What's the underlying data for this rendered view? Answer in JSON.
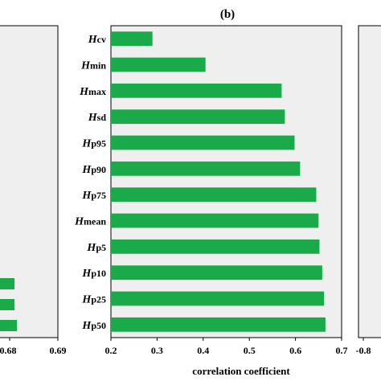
{
  "panels": {
    "left": {
      "tick_labels": [
        "0.68",
        "0.69"
      ]
    },
    "right": {
      "tick_labels": [
        "-0.8"
      ]
    }
  },
  "colors": {
    "bar": "#1aaa4a",
    "bar_stroke": "#0d7a30",
    "plot_bg": "#efefef",
    "axis": "#000000"
  },
  "chart_data": {
    "type": "bar",
    "orientation": "horizontal",
    "title": "(b)",
    "xlabel": "correlation coefficient",
    "ylabel": "",
    "xlim": [
      0.2,
      0.7
    ],
    "xticks": [
      "0.2",
      "0.3",
      "0.4",
      "0.5",
      "0.6",
      "0.7"
    ],
    "categories": [
      {
        "main": "H",
        "sub": "cv"
      },
      {
        "main": "H",
        "sub": "min"
      },
      {
        "main": "H",
        "sub": "max"
      },
      {
        "main": "H",
        "sub": "sd"
      },
      {
        "main": "H",
        "sub": "p95"
      },
      {
        "main": "H",
        "sub": "p90"
      },
      {
        "main": "H",
        "sub": "p75"
      },
      {
        "main": "H",
        "sub": "mean"
      },
      {
        "main": "H",
        "sub": "p5"
      },
      {
        "main": "H",
        "sub": "p10"
      },
      {
        "main": "H",
        "sub": "p25"
      },
      {
        "main": "H",
        "sub": "p50"
      }
    ],
    "values": [
      0.29,
      0.405,
      0.57,
      0.577,
      0.598,
      0.61,
      0.645,
      0.65,
      0.652,
      0.658,
      0.662,
      0.665
    ],
    "grid": false,
    "legend": "none"
  }
}
